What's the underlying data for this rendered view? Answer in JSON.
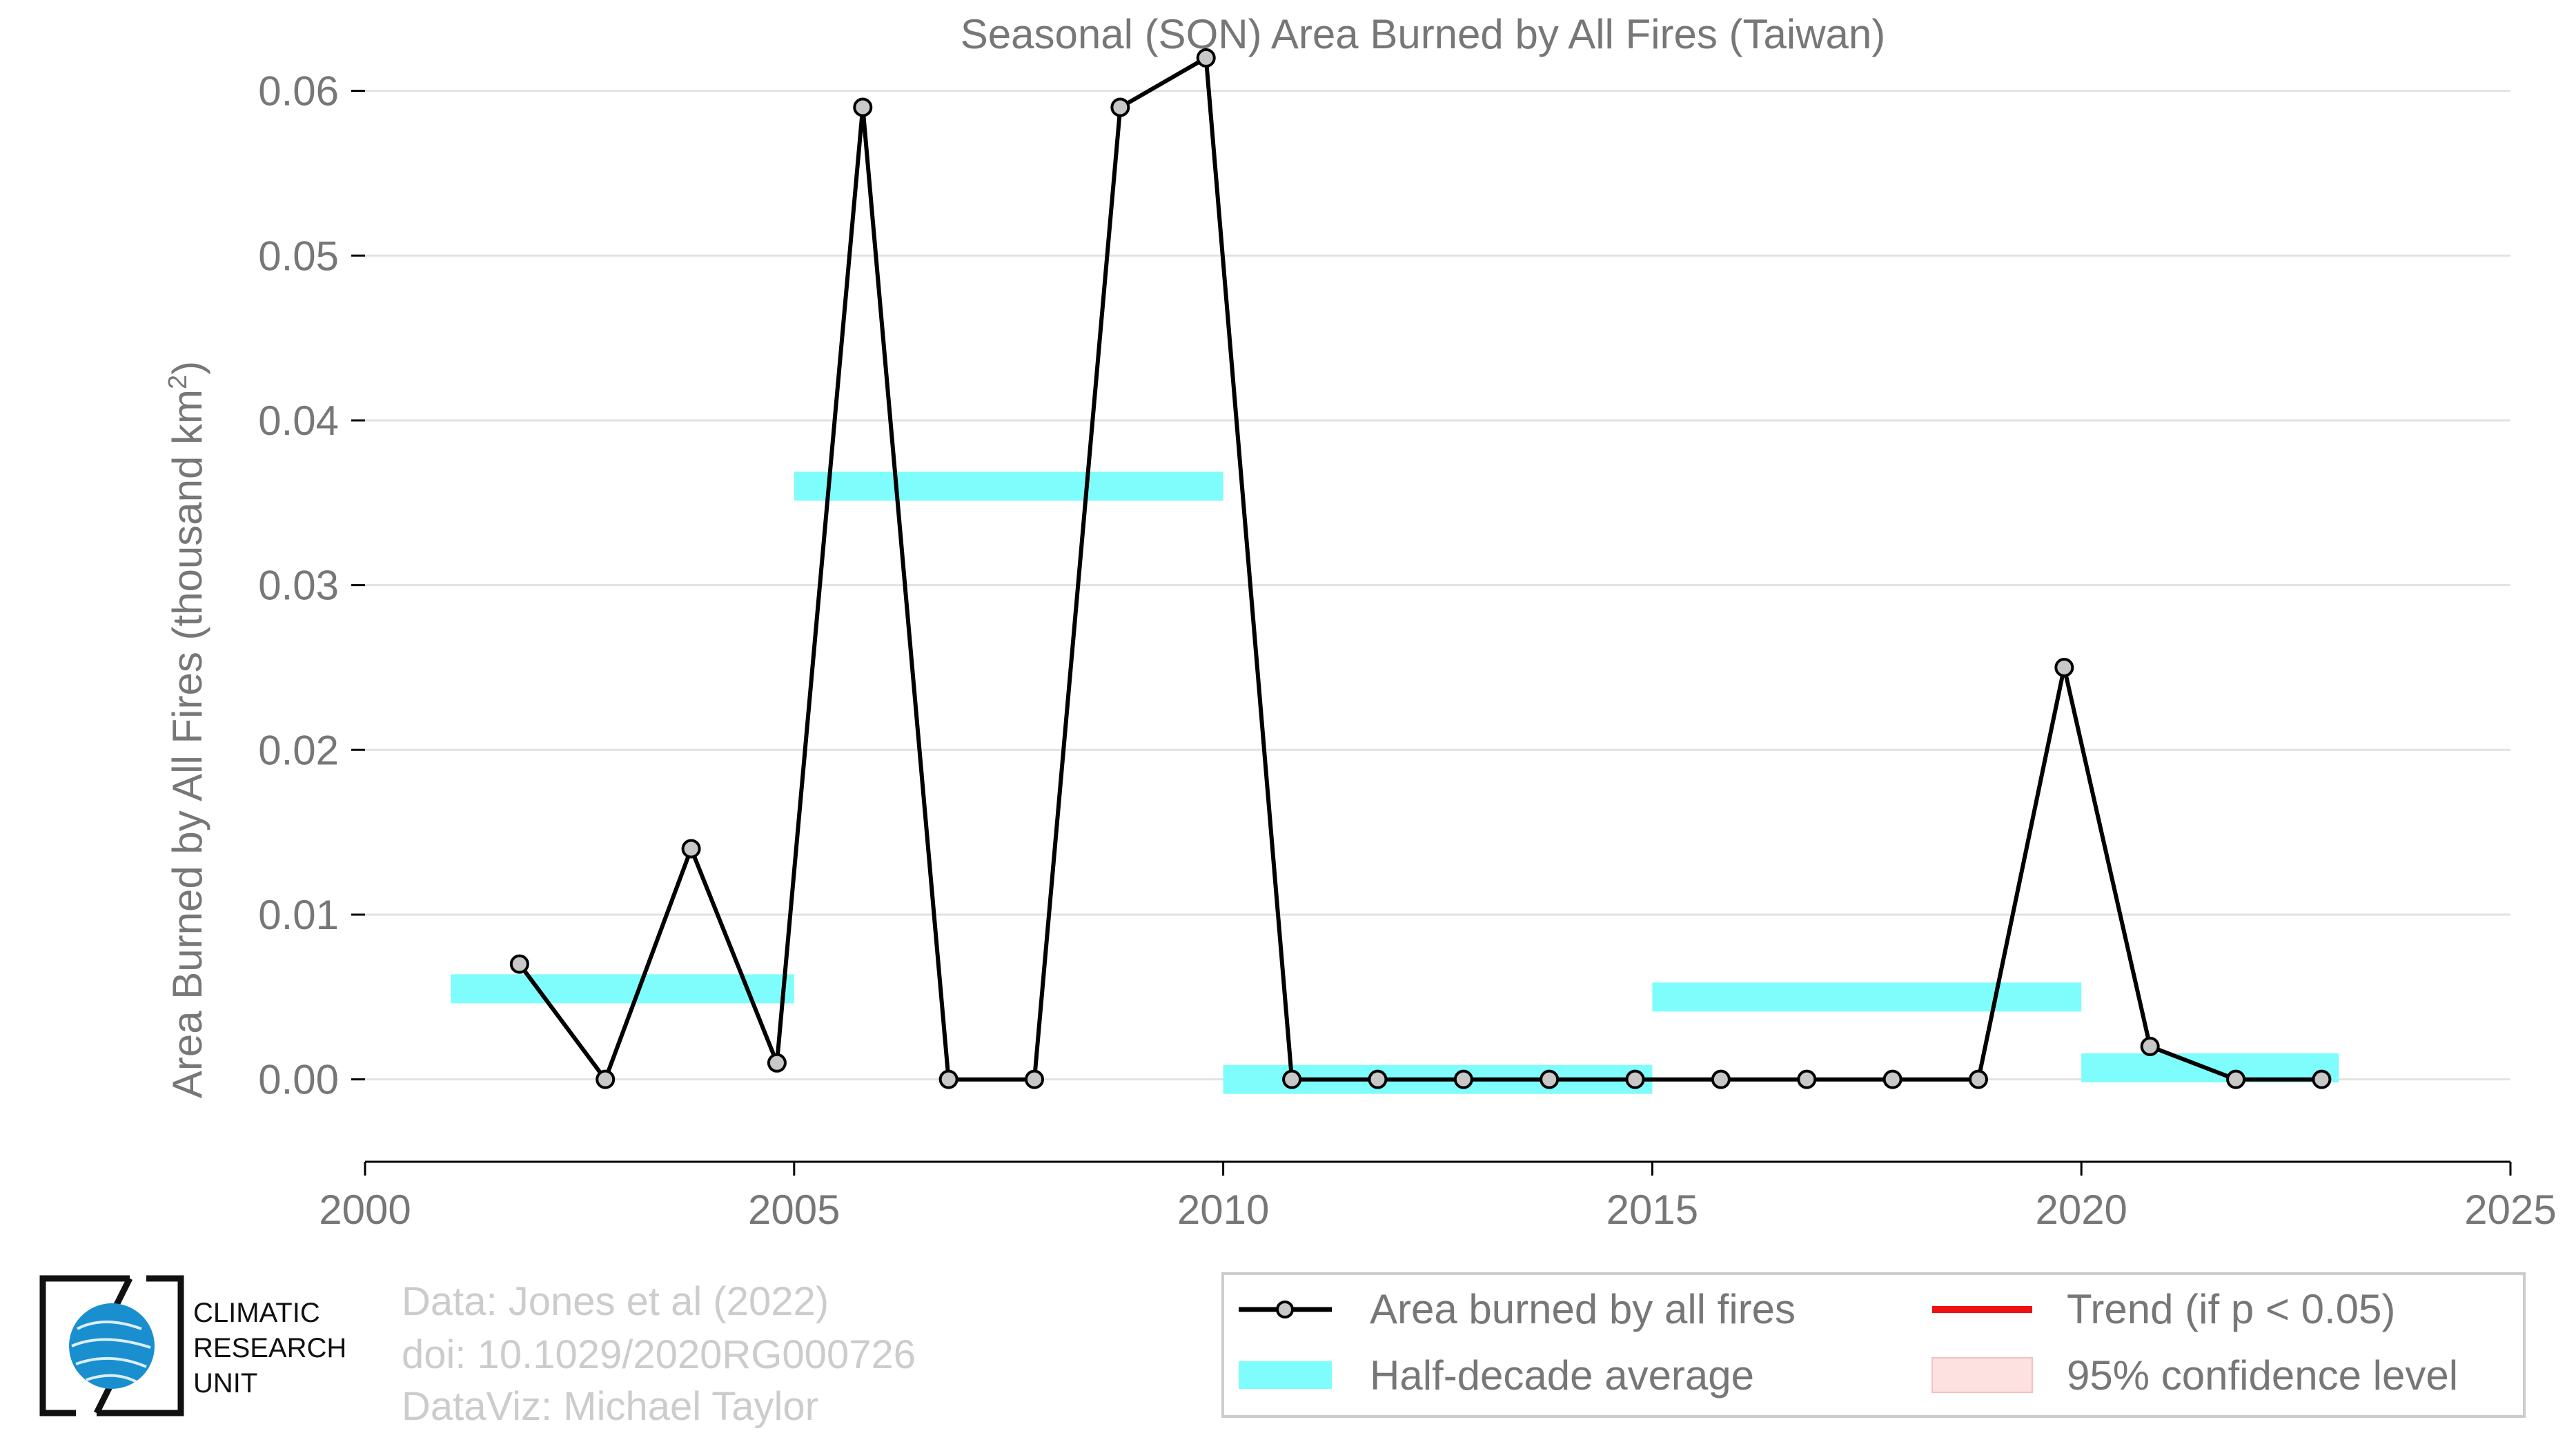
{
  "chart_data": {
    "type": "line",
    "title": "Seasonal (SON) Area Burned by All Fires (Taiwan)",
    "xlabel": "",
    "ylabel_main": "Area Burned by All Fires (thousand km",
    "ylabel_sup": "2",
    "ylabel_close": ")",
    "xlim": [
      2000,
      2025
    ],
    "ylim": [
      -0.005,
      0.063
    ],
    "grid": true,
    "xticks": [
      2000,
      2005,
      2010,
      2015,
      2020,
      2025
    ],
    "xtick_labels": [
      "2000",
      "2005",
      "2010",
      "2015",
      "2020",
      "2025"
    ],
    "yticks": [
      0.0,
      0.01,
      0.02,
      0.03,
      0.04,
      0.05,
      0.06
    ],
    "ytick_labels": [
      "0.00",
      "0.01",
      "0.02",
      "0.03",
      "0.04",
      "0.05",
      "0.06"
    ],
    "series": [
      {
        "name": "Area burned by all fires",
        "color": "#000000",
        "marker_fill": "#c8c8c8",
        "x": [
          2001.8,
          2002.8,
          2003.8,
          2004.8,
          2005.8,
          2006.8,
          2007.8,
          2008.8,
          2009.8,
          2010.8,
          2011.8,
          2012.8,
          2013.8,
          2014.8,
          2015.8,
          2016.8,
          2017.8,
          2018.8,
          2019.8,
          2020.8,
          2021.8,
          2022.8
        ],
        "y": [
          0.007,
          0.0,
          0.014,
          0.001,
          0.059,
          0.0,
          0.0,
          0.059,
          0.062,
          0.0,
          0.0,
          0.0,
          0.0,
          0.0,
          0.0,
          0.0,
          0.0,
          0.0,
          0.025,
          0.002,
          0.0,
          0.0
        ]
      }
    ],
    "half_decade_average": {
      "name": "Half-decade average",
      "color": "#7ffcfc",
      "segments": [
        {
          "x0": 2001,
          "x1": 2005,
          "y": 0.0055
        },
        {
          "x0": 2005,
          "x1": 2010,
          "y": 0.036
        },
        {
          "x0": 2010,
          "x1": 2015,
          "y": 0.0
        },
        {
          "x0": 2015,
          "x1": 2020,
          "y": 0.005
        },
        {
          "x0": 2020,
          "x1": 2023,
          "y": 0.0007
        }
      ]
    },
    "legend": {
      "placement": "bottom-right",
      "entries": [
        {
          "label": "Area burned by all fires",
          "kind": "line-marker",
          "color": "#000000"
        },
        {
          "label": "Trend (if p < 0.05)",
          "kind": "line",
          "color": "#ee1111"
        },
        {
          "label": "Half-decade average",
          "kind": "band",
          "color": "#7ffcfc"
        },
        {
          "label": "95% confidence level",
          "kind": "band",
          "color": "#fde0e0"
        }
      ]
    }
  },
  "credits": {
    "line1": "Data: Jones et al (2022)",
    "line2": "doi: 10.1029/2020RG000726",
    "line3": "DataViz: Michael Taylor"
  },
  "logo": {
    "line1": "CLIMATIC",
    "line2": "RESEARCH",
    "line3": "UNIT",
    "globe_color": "#1a8fd0"
  },
  "colors": {
    "text": "#777777",
    "grid": "#e2e2e2",
    "credits": "#cccccc",
    "legend_border": "#cccccc"
  }
}
